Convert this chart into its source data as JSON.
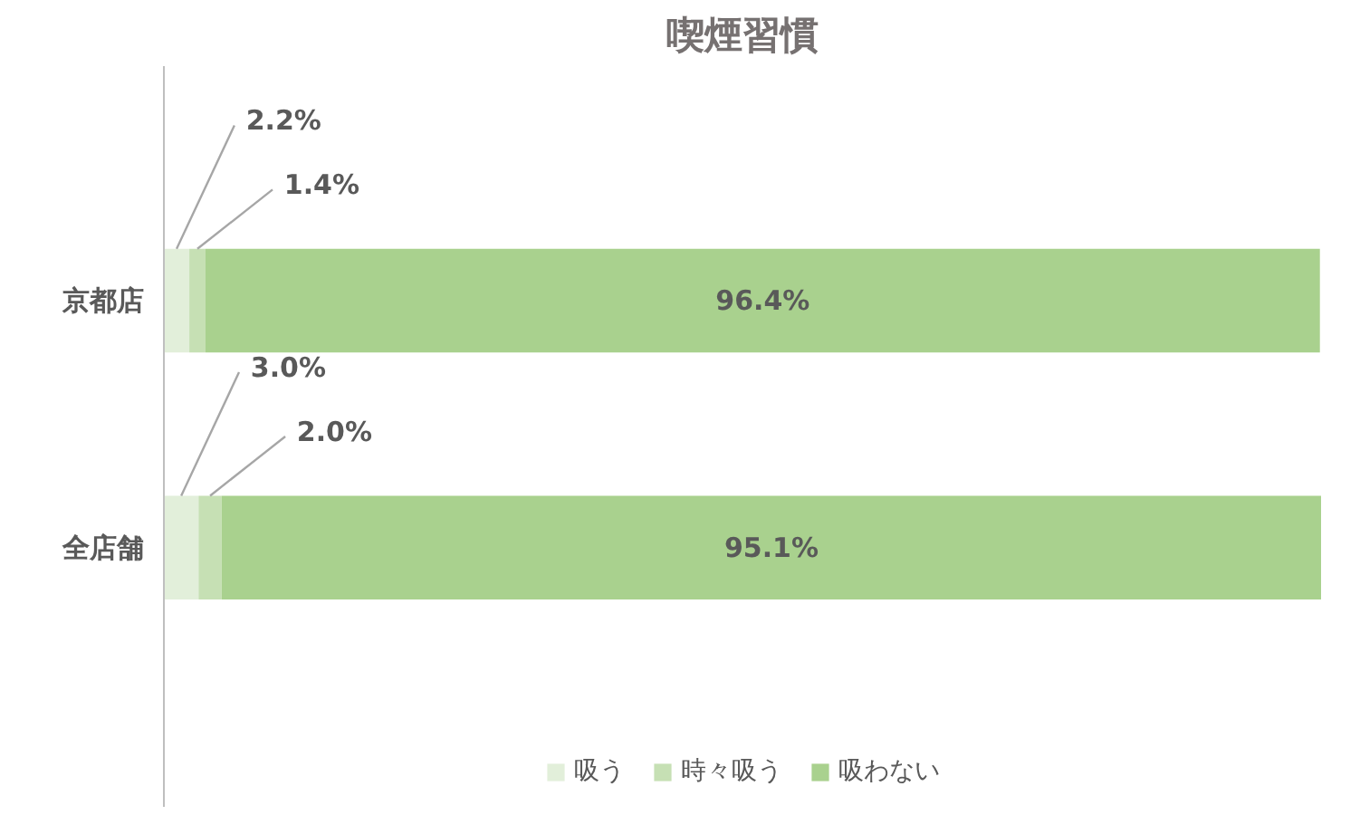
{
  "chart_data": {
    "type": "bar",
    "orientation": "horizontal",
    "stacked": true,
    "title": "喫煙習慣",
    "categories": [
      "京都店",
      "全店舗"
    ],
    "series": [
      {
        "name": "吸う",
        "color": "#e2efda",
        "values": [
          2.2,
          3.0
        ],
        "value_labels": [
          "2.2%",
          "3.0%"
        ]
      },
      {
        "name": "時々吸う",
        "color": "#c6e0b4",
        "values": [
          1.4,
          2.0
        ],
        "value_labels": [
          "1.4%",
          "2.0%"
        ]
      },
      {
        "name": "吸わない",
        "color": "#a9d18e",
        "values": [
          96.4,
          95.1
        ],
        "value_labels": [
          "96.4%",
          "95.1%"
        ]
      }
    ],
    "legend": "bottom",
    "grid": false
  }
}
